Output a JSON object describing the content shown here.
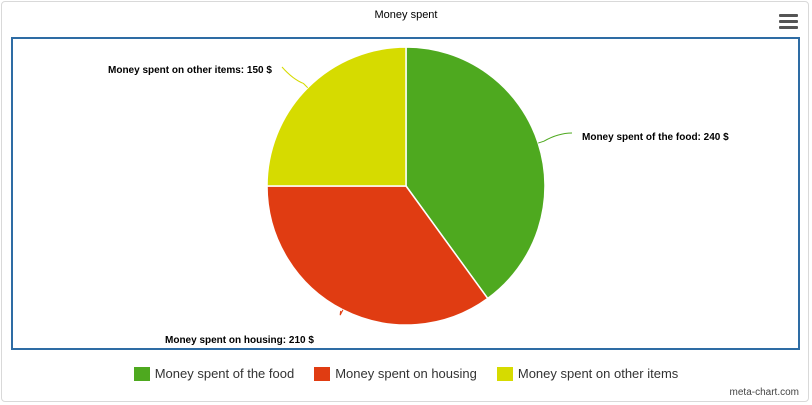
{
  "credit": "meta-chart.com",
  "colors": {
    "frame": "#2e6ca4"
  },
  "icons": {
    "menu": "hamburger-menu-icon"
  },
  "chart_data": {
    "type": "pie",
    "title": "Money spent",
    "slices": [
      {
        "label": "Money spent of the food",
        "value": 240,
        "unit": "$",
        "color": "#4ea91f",
        "data_label": "Money spent of the food: 240 $"
      },
      {
        "label": "Money spent on housing",
        "value": 210,
        "unit": "$",
        "color": "#e03c12",
        "data_label": "Money spent on housing: 210 $"
      },
      {
        "label": "Money spent on other items",
        "value": 150,
        "unit": "$",
        "color": "#d6db00",
        "data_label": "Money spent on other items: 150 $"
      }
    ],
    "legend_position": "bottom"
  }
}
